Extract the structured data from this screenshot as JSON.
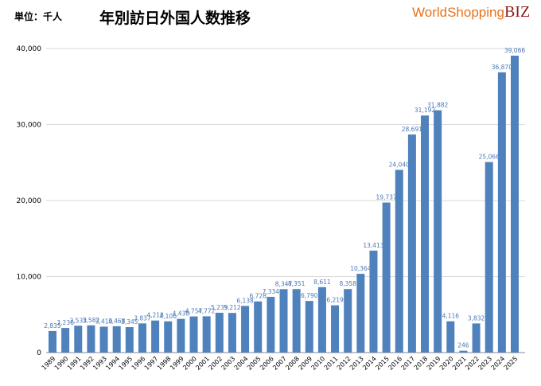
{
  "unit_label": "単位：千人",
  "logo": {
    "world": "WorldShopping",
    "biz": "BIZ"
  },
  "chart_data": {
    "type": "bar",
    "title": "年別訪日外国人数推移",
    "xlabel": "",
    "ylabel": "",
    "ylim": [
      0,
      40000
    ],
    "yticks": [
      "0",
      "10,000",
      "20,000",
      "30,000",
      "40,000"
    ],
    "grid": true,
    "bar_color": "#4f81bd",
    "categories": [
      "1989",
      "1990",
      "1991",
      "1992",
      "1993",
      "1994",
      "1995",
      "1996",
      "1997",
      "1998",
      "1999",
      "2000",
      "2001",
      "2002",
      "2003",
      "2004",
      "2005",
      "2006",
      "2007",
      "2008",
      "2009",
      "2010",
      "2011",
      "2012",
      "2013",
      "2014",
      "2015",
      "2016",
      "2017",
      "2018",
      "2019",
      "2020",
      "2021",
      "2022",
      "2023",
      "2024",
      "2025"
    ],
    "values": [
      2835,
      3236,
      3533,
      3582,
      3410,
      3468,
      3345,
      3837,
      4218,
      4106,
      4438,
      4757,
      4772,
      5239,
      5212,
      6138,
      6728,
      7334,
      8347,
      8351,
      6790,
      8611,
      6219,
      8358,
      10364,
      13413,
      19737,
      24040,
      28691,
      31192,
      31882,
      4116,
      246,
      3832,
      25066,
      36870,
      39066
    ]
  }
}
